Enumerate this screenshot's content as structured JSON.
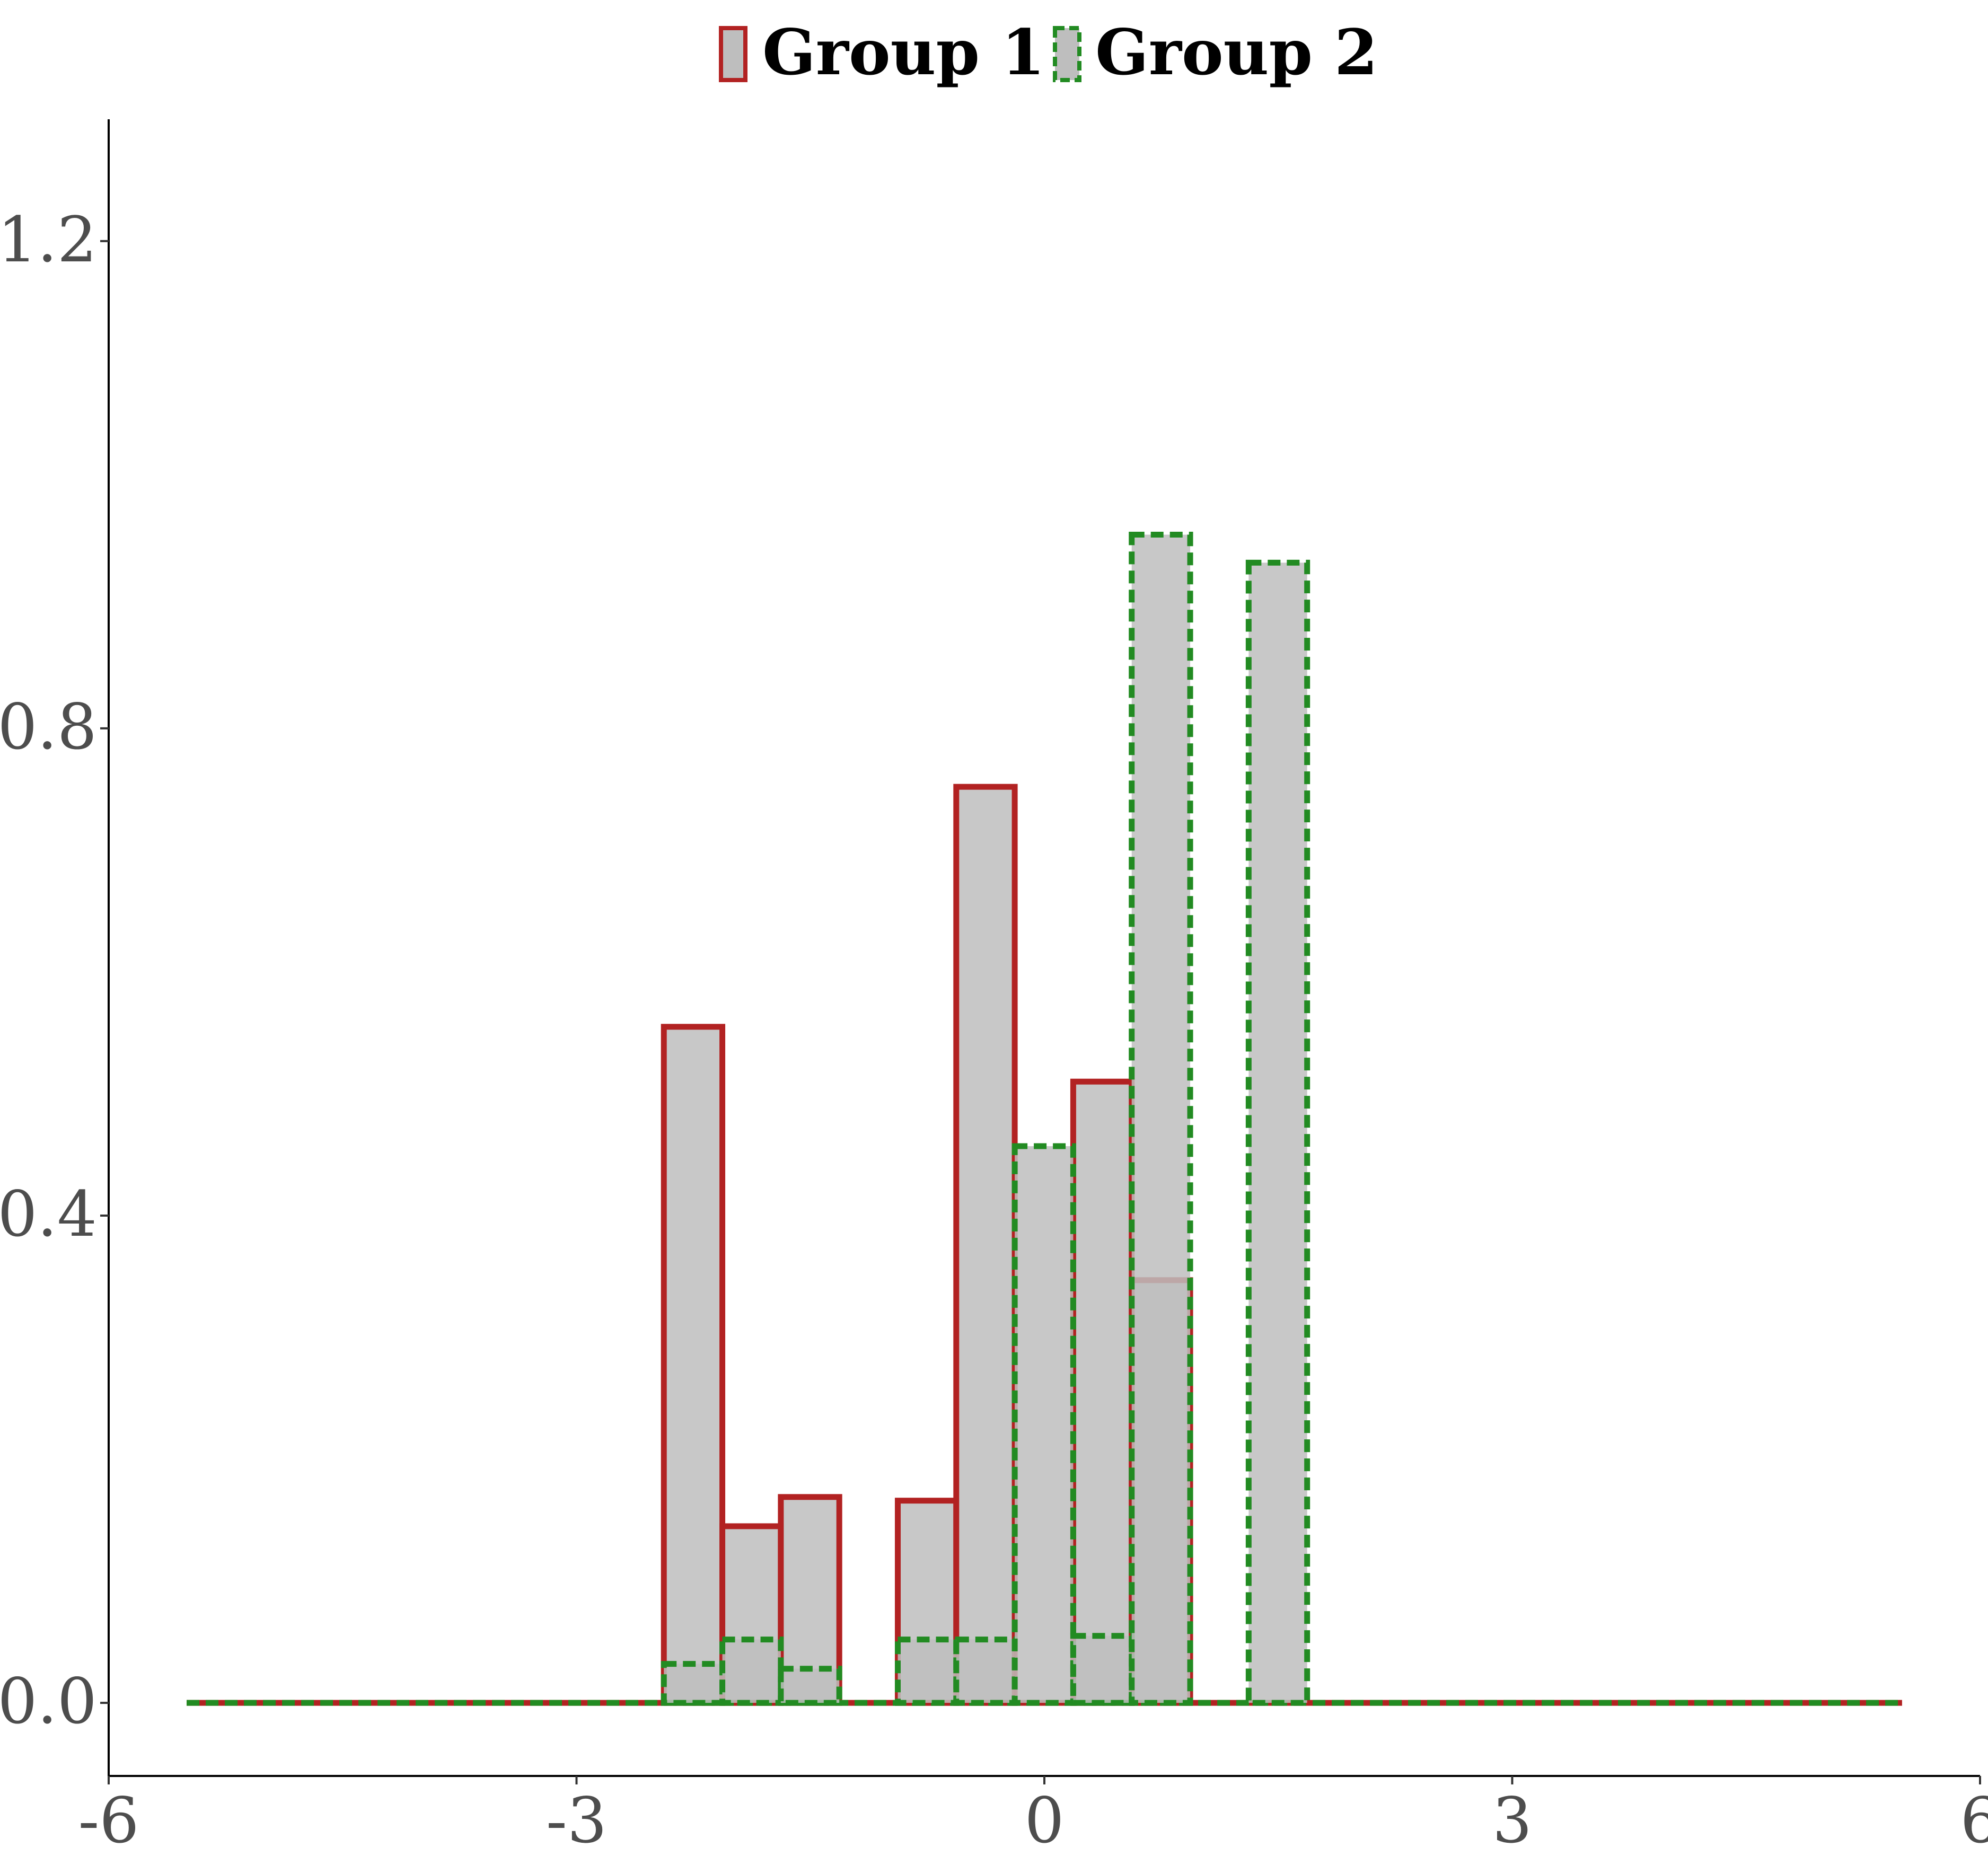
{
  "chart_data": {
    "type": "bar",
    "subtype": "overlaid-histogram",
    "title": "",
    "xlabel": "",
    "ylabel": "",
    "xlim": [
      -6,
      6
    ],
    "ylim": [
      -0.06,
      1.3
    ],
    "xticks": [
      -6,
      -3,
      0,
      3,
      6
    ],
    "xtick_labels": [
      "-6",
      "-3",
      "0",
      "3",
      "6"
    ],
    "yticks": [
      0.0,
      0.4,
      0.8,
      1.2
    ],
    "ytick_labels": [
      "0.0",
      "0.4",
      "0.8",
      "1.2"
    ],
    "grid": false,
    "legend_position": "top",
    "bin_width": 0.375,
    "series": [
      {
        "name": "Group 1",
        "outline_color": "#B22222",
        "fill_color": "#BEBEBE",
        "line_style": "solid",
        "bins": [
          {
            "x0": -2.44,
            "x1": -2.065,
            "value": 0.555
          },
          {
            "x0": -2.065,
            "x1": -1.69,
            "value": 0.145
          },
          {
            "x0": -1.69,
            "x1": -1.315,
            "value": 0.169
          },
          {
            "x0": -0.94,
            "x1": -0.565,
            "value": 0.166
          },
          {
            "x0": -0.565,
            "x1": -0.19,
            "value": 0.752
          },
          {
            "x0": 0.185,
            "x1": 0.56,
            "value": 0.51
          },
          {
            "x0": 0.56,
            "x1": 0.935,
            "value": 0.347
          }
        ]
      },
      {
        "name": "Group 2",
        "outline_color": "#228B22",
        "fill_color": "#BEBEBE",
        "line_style": "dashed",
        "bins": [
          {
            "x0": -2.44,
            "x1": -2.065,
            "value": 0.032
          },
          {
            "x0": -2.065,
            "x1": -1.69,
            "value": 0.052
          },
          {
            "x0": -1.69,
            "x1": -1.315,
            "value": 0.028
          },
          {
            "x0": -0.94,
            "x1": -0.565,
            "value": 0.052
          },
          {
            "x0": -0.565,
            "x1": -0.19,
            "value": 0.052
          },
          {
            "x0": -0.19,
            "x1": 0.185,
            "value": 0.457
          },
          {
            "x0": 0.185,
            "x1": 0.56,
            "value": 0.055
          },
          {
            "x0": 0.56,
            "x1": 0.935,
            "value": 0.959
          },
          {
            "x0": 1.31,
            "x1": 1.685,
            "value": 0.936
          }
        ]
      }
    ],
    "baseline_range": [
      -5.5,
      5.5
    ]
  }
}
